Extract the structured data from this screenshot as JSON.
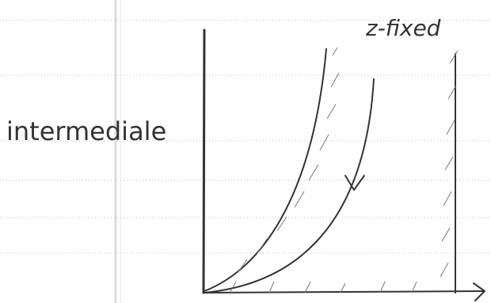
{
  "labels": {
    "y_axis": "intermediale",
    "region": "z-fixed"
  }
}
